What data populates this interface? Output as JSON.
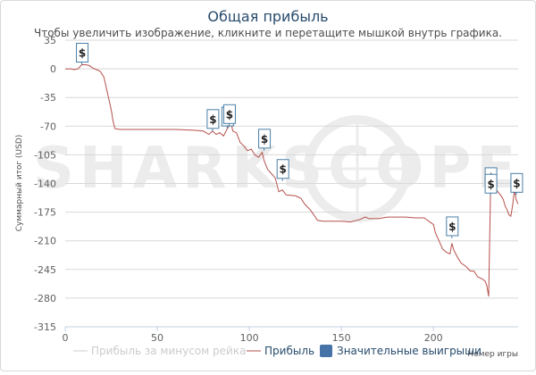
{
  "chart_data": {
    "type": "line",
    "title": "Общая прибыль",
    "subtitle": "Чтобы увеличить изображение, кликните и перетащите мышкой внутрь графика.",
    "xlabel": "Номер игры",
    "ylabel": "Суммарный итог (USD)",
    "xlim": [
      0,
      246
    ],
    "ylim": [
      -315,
      35
    ],
    "x_ticks": [
      0,
      50,
      100,
      150,
      200
    ],
    "y_ticks": [
      35,
      0,
      -35,
      -70,
      -105,
      -140,
      -175,
      -210,
      -245,
      -280,
      -315
    ],
    "grid": "horizontal",
    "watermark": "SHARKSCOPE",
    "legend_position": "bottom-center",
    "series": [
      {
        "name": "Прибыль за минусом рейка",
        "color": "#cccccc",
        "visible": false,
        "points": []
      },
      {
        "name": "Прибыль",
        "color": "#b5504c",
        "points": [
          [
            0,
            0
          ],
          [
            3,
            0
          ],
          [
            5,
            -1
          ],
          [
            7,
            0
          ],
          [
            9,
            5
          ],
          [
            11,
            5
          ],
          [
            13,
            4
          ],
          [
            15,
            1
          ],
          [
            17,
            -1
          ],
          [
            19,
            -3
          ],
          [
            21,
            -10
          ],
          [
            23,
            -30
          ],
          [
            25,
            -50
          ],
          [
            26,
            -64
          ],
          [
            27,
            -73
          ],
          [
            30,
            -74
          ],
          [
            40,
            -74
          ],
          [
            50,
            -74
          ],
          [
            60,
            -74
          ],
          [
            70,
            -75
          ],
          [
            75,
            -76
          ],
          [
            78,
            -80
          ],
          [
            80,
            -76
          ],
          [
            82,
            -80
          ],
          [
            84,
            -78
          ],
          [
            86,
            -82
          ],
          [
            88,
            -73
          ],
          [
            89,
            -70
          ],
          [
            90,
            -63
          ],
          [
            91,
            -76
          ],
          [
            93,
            -78
          ],
          [
            95,
            -90
          ],
          [
            97,
            -94
          ],
          [
            99,
            -100
          ],
          [
            101,
            -98
          ],
          [
            103,
            -105
          ],
          [
            105,
            -108
          ],
          [
            107,
            -102
          ],
          [
            108,
            -112
          ],
          [
            110,
            -123
          ],
          [
            112,
            -128
          ],
          [
            114,
            -133
          ],
          [
            116,
            -150
          ],
          [
            118,
            -148
          ],
          [
            120,
            -154
          ],
          [
            125,
            -155
          ],
          [
            128,
            -158
          ],
          [
            130,
            -165
          ],
          [
            133,
            -172
          ],
          [
            135,
            -178
          ],
          [
            137,
            -185
          ],
          [
            140,
            -186
          ],
          [
            145,
            -186
          ],
          [
            150,
            -186
          ],
          [
            155,
            -187
          ],
          [
            158,
            -185
          ],
          [
            160,
            -184
          ],
          [
            163,
            -181
          ],
          [
            165,
            -183
          ],
          [
            170,
            -183
          ],
          [
            175,
            -181
          ],
          [
            180,
            -181
          ],
          [
            185,
            -181
          ],
          [
            190,
            -182
          ],
          [
            195,
            -182
          ],
          [
            198,
            -187
          ],
          [
            200,
            -190
          ],
          [
            201,
            -200
          ],
          [
            203,
            -210
          ],
          [
            205,
            -220
          ],
          [
            207,
            -224
          ],
          [
            209,
            -226
          ],
          [
            210,
            -213
          ],
          [
            211,
            -221
          ],
          [
            213,
            -230
          ],
          [
            215,
            -237
          ],
          [
            218,
            -242
          ],
          [
            220,
            -247
          ],
          [
            222,
            -247
          ],
          [
            224,
            -254
          ],
          [
            226,
            -256
          ],
          [
            228,
            -259
          ],
          [
            229,
            -265
          ],
          [
            230,
            -278
          ],
          [
            231,
            -150
          ],
          [
            232,
            -130
          ],
          [
            233,
            -145
          ],
          [
            235,
            -150
          ],
          [
            237,
            -156
          ],
          [
            238,
            -160
          ],
          [
            239,
            -168
          ],
          [
            240,
            -172
          ],
          [
            241,
            -178
          ],
          [
            242,
            -180
          ],
          [
            243,
            -167
          ],
          [
            244,
            -148
          ],
          [
            245,
            -160
          ],
          [
            246,
            -165
          ]
        ]
      }
    ],
    "flags_series": {
      "name": "Значительные выигрыши",
      "color": "#4572a7",
      "label": "$",
      "points": [
        [
          9,
          5
        ],
        [
          80,
          -76
        ],
        [
          88,
          -73
        ],
        [
          89,
          -70
        ],
        [
          108,
          -100
        ],
        [
          118,
          -137
        ],
        [
          210,
          -207
        ],
        [
          231,
          -147
        ],
        [
          231,
          -155
        ],
        [
          245,
          -154
        ]
      ]
    }
  }
}
